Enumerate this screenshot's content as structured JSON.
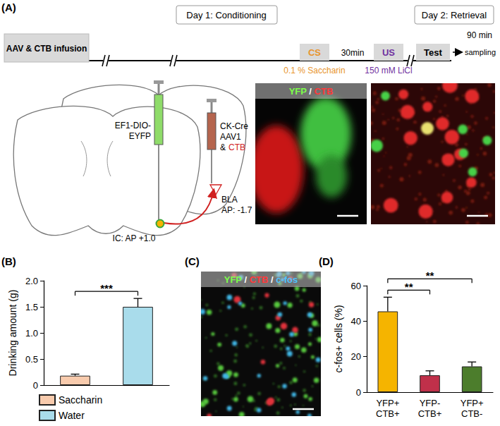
{
  "panels": {
    "A": {
      "label": "(A)",
      "timeline": {
        "start": "AAV & CTB infusion",
        "day1": "Day 1: Conditioning",
        "day2": "Day 2: Retrieval",
        "cs": "CS",
        "interval": "30min",
        "us": "US",
        "test": "Test",
        "delay": "90 min",
        "end": "sampling",
        "cs_solution": "0.1 % Saccharin",
        "us_solution": "150 mM LiCl"
      },
      "surgery": {
        "left_virus": [
          "EF1-DIO-",
          "EYFP"
        ],
        "right_virus": [
          "CK-Cre",
          "AAV1",
          "&",
          "CTB"
        ],
        "target1": [
          "BLA",
          "AP: -1.7"
        ],
        "target2": "IC: AP +1.0"
      },
      "image_channels": [
        "YFP",
        "CTB"
      ],
      "separator": " / "
    },
    "B": {
      "label": "(B)"
    },
    "C": {
      "label": "(C)",
      "image_channels": [
        "YFP",
        "CTB",
        "c-fos"
      ]
    },
    "D": {
      "label": "(D)"
    }
  },
  "chart_data": [
    {
      "type": "bar",
      "categories": [
        null,
        null
      ],
      "series": [
        {
          "name": "Saccharin",
          "color": "#f8cbad",
          "values": [
            0.18,
            null
          ],
          "errors": [
            0.03,
            null
          ]
        },
        {
          "name": "Water",
          "color": "#a9dceb",
          "values": [
            null,
            1.5
          ],
          "errors": [
            null,
            0.16
          ]
        }
      ],
      "ylabel": "Drinking amount (g)",
      "ylim": [
        0,
        2.0
      ],
      "yticks": [
        0,
        0.5,
        {
          "value": 1.0,
          "label": "1.0"
        },
        1.5,
        {
          "value": 2.0,
          "label": "2.0"
        }
      ],
      "legend": "bottom",
      "grid": false,
      "tick_labels": "y",
      "annotations": [
        {
          "from": 0,
          "to": 1,
          "text": "***"
        }
      ]
    },
    {
      "type": "bar",
      "categories": [
        "YFP+\nCTB+",
        "YFP-\nCTB+",
        "YFP+\nCTB-"
      ],
      "values": [
        45.5,
        9.5,
        14.5
      ],
      "errors": [
        8,
        2.5,
        2.5
      ],
      "colors": [
        "#f5b400",
        "#c0304a",
        "#4c7d2c"
      ],
      "ylabel": "c-fos+ cells (%)",
      "ylim": [
        0,
        60
      ],
      "yticks": [
        0,
        20,
        40,
        60
      ],
      "grid": false,
      "annotations": [
        {
          "from": 0,
          "to": 1,
          "text": "**"
        },
        {
          "from": 0,
          "to": 2,
          "text": "**"
        }
      ]
    }
  ]
}
